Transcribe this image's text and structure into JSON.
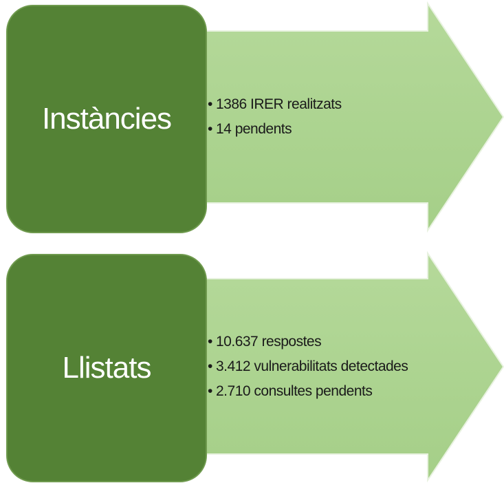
{
  "items": [
    {
      "label": "Instàncies",
      "bullets": [
        "1386 IRER realitzats",
        "14 pendents"
      ]
    },
    {
      "label": "Llistats",
      "bullets": [
        "10.637 respostes",
        "3.412 vulnerabilitats detectades",
        "2.710 consultes pendents"
      ]
    }
  ]
}
